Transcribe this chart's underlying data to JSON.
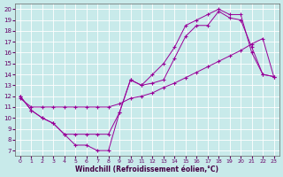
{
  "xlabel": "Windchill (Refroidissement éolien,°C)",
  "bg_color": "#c8eaea",
  "line_color": "#990099",
  "xlim": [
    -0.5,
    23.5
  ],
  "ylim": [
    6.5,
    20.5
  ],
  "xticks": [
    0,
    1,
    2,
    3,
    4,
    5,
    6,
    7,
    8,
    9,
    10,
    11,
    12,
    13,
    14,
    15,
    16,
    17,
    18,
    19,
    20,
    21,
    22,
    23
  ],
  "yticks": [
    7,
    8,
    9,
    10,
    11,
    12,
    13,
    14,
    15,
    16,
    17,
    18,
    19,
    20
  ],
  "line1_x": [
    0,
    1,
    2,
    3,
    4,
    5,
    6,
    7,
    8,
    9,
    10,
    11,
    12,
    13,
    14,
    15,
    16,
    17,
    18,
    19,
    20,
    21,
    22,
    23
  ],
  "line1_y": [
    12,
    10.7,
    10,
    9.5,
    8.5,
    7.5,
    7.5,
    7,
    7,
    10.5,
    13.5,
    13,
    13.2,
    13.5,
    15.5,
    17.5,
    18.5,
    18.5,
    19.8,
    19.2,
    19,
    16.5,
    14,
    13.8
  ],
  "line2_x": [
    0,
    1,
    2,
    3,
    4,
    5,
    6,
    7,
    8,
    9,
    10,
    11,
    12,
    13,
    14,
    15,
    16,
    17,
    18,
    19,
    20,
    21,
    22,
    23
  ],
  "line2_y": [
    11.8,
    11.0,
    11.0,
    11.0,
    11.0,
    11.0,
    11.0,
    11.0,
    11.0,
    11.3,
    11.8,
    12.0,
    12.3,
    12.8,
    13.2,
    13.7,
    14.2,
    14.7,
    15.2,
    15.7,
    16.2,
    16.8,
    17.3,
    13.8
  ],
  "line3_x": [
    0,
    1,
    2,
    3,
    4,
    5,
    6,
    7,
    8,
    9,
    10,
    11,
    12,
    13,
    14,
    15,
    16,
    17,
    18,
    19,
    20,
    21,
    22,
    23
  ],
  "line3_y": [
    12,
    10.7,
    10,
    9.5,
    8.5,
    8.5,
    8.5,
    8.5,
    8.5,
    10.5,
    13.5,
    13,
    14,
    15,
    16.5,
    18.5,
    19.0,
    19.5,
    20,
    19.5,
    19.5,
    16,
    14,
    13.8
  ]
}
